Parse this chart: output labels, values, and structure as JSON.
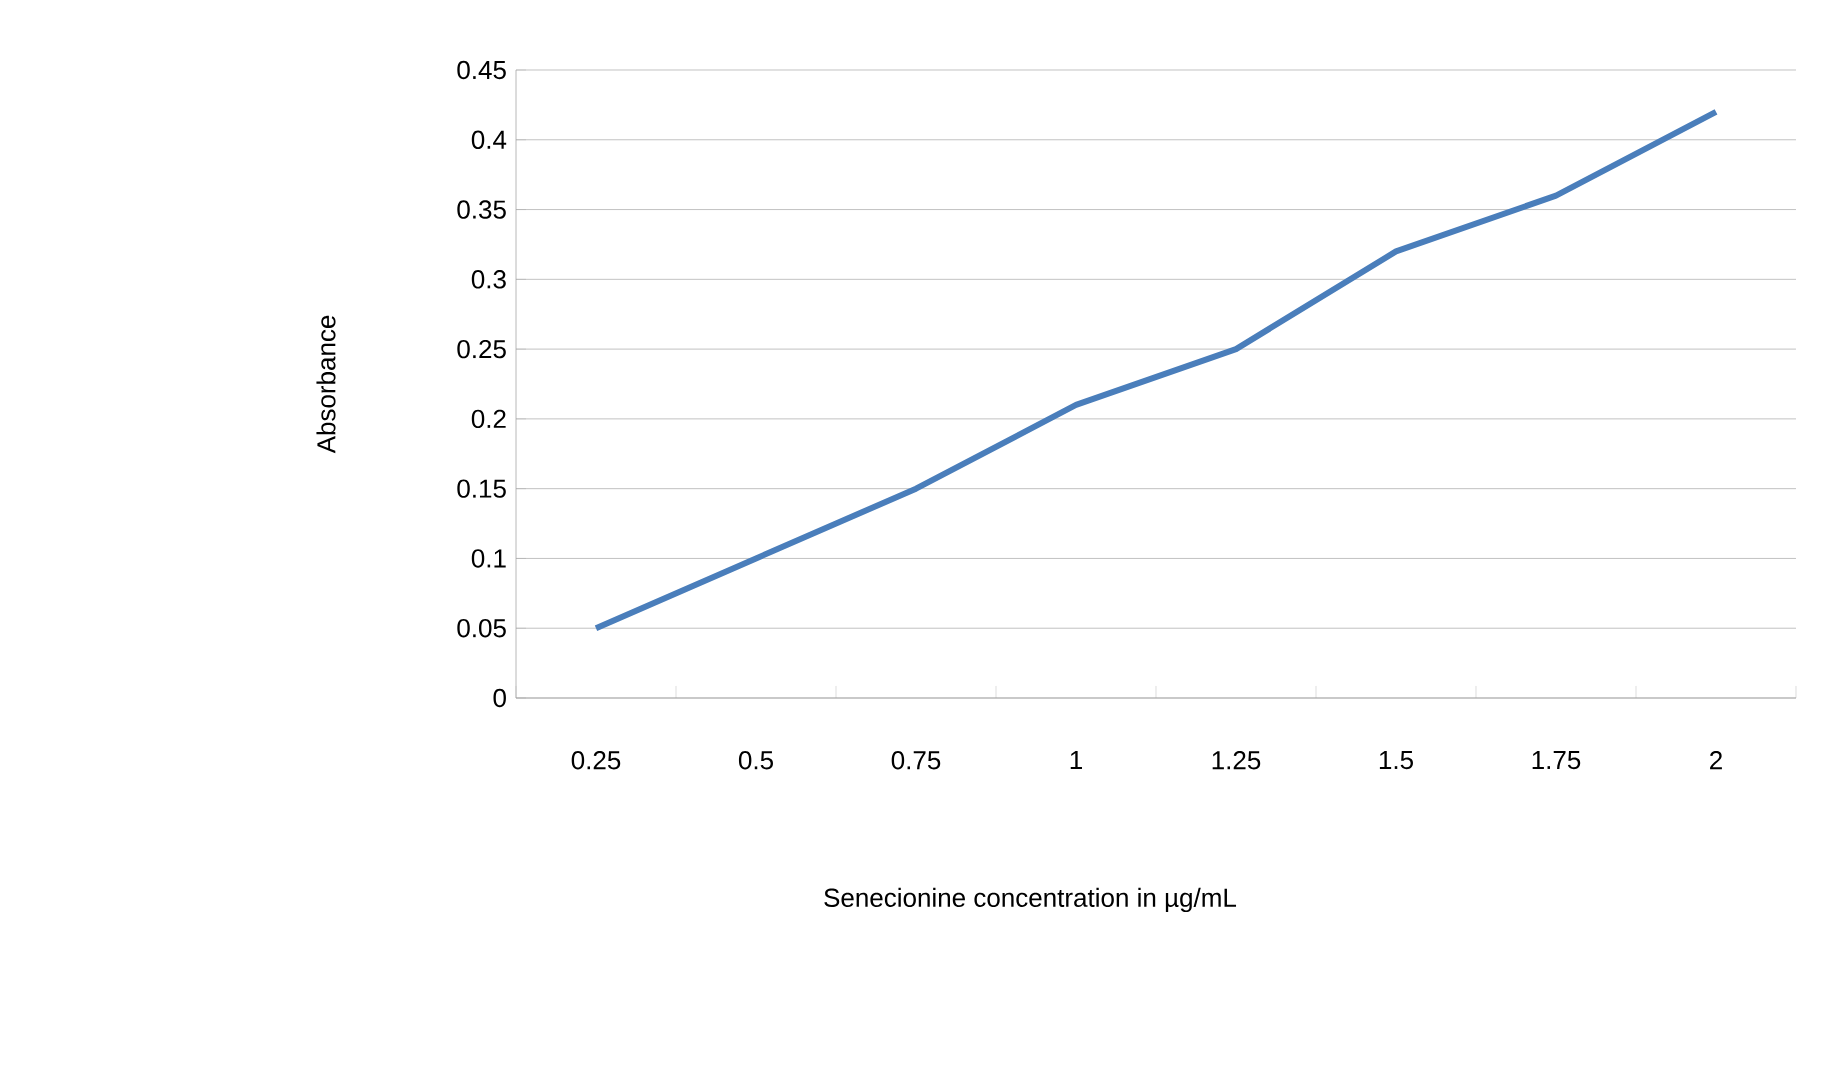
{
  "chart_data": {
    "type": "line",
    "xlabel": "Senecionine concentration in µg/mL",
    "ylabel": "Absorbance",
    "categories": [
      "0.25",
      "0.5",
      "0.75",
      "1",
      "1.25",
      "1.5",
      "1.75",
      "2"
    ],
    "series": [
      {
        "color": "#4a7ebb",
        "values": [
          0.05,
          0.1,
          0.15,
          0.21,
          0.25,
          0.32,
          0.36,
          0.42
        ]
      }
    ],
    "ylim": [
      0,
      0.45
    ],
    "yticks": [
      0,
      0.05,
      0.1,
      0.15,
      0.2,
      0.25,
      0.3,
      0.35,
      0.4,
      0.45
    ],
    "grid": "y",
    "marker": "none",
    "line_style": "solid"
  }
}
